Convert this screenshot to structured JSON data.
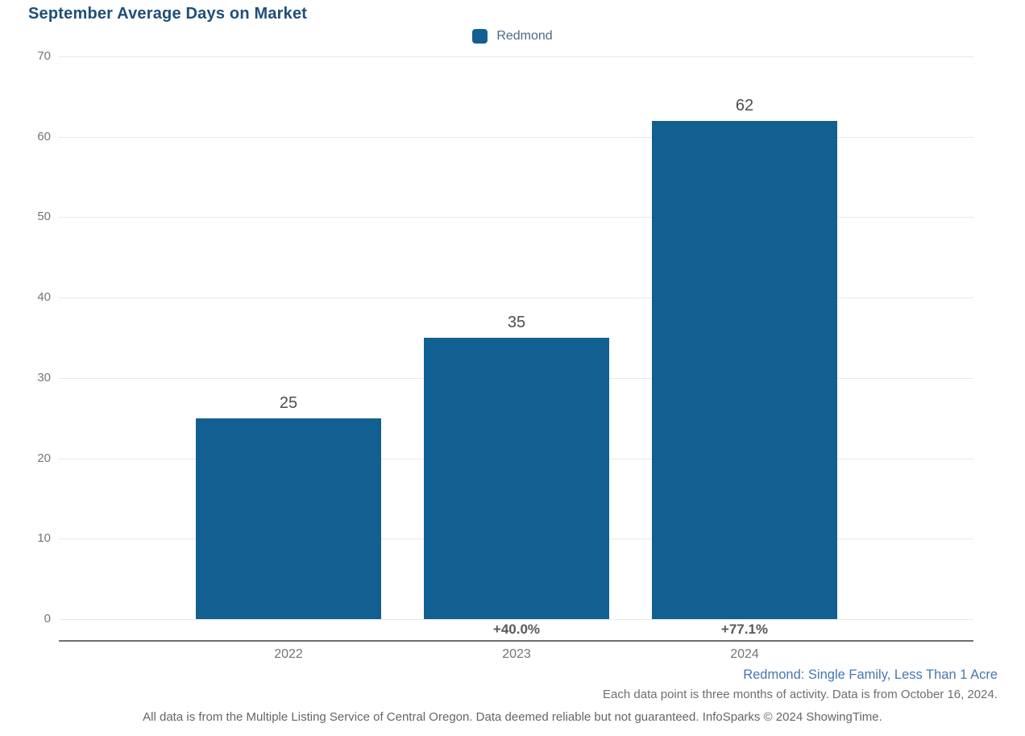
{
  "chart_data": {
    "type": "bar",
    "title": "September Average Days on Market",
    "legend": [
      {
        "name": "Redmond",
        "color": "#126092"
      }
    ],
    "legend_position": "top-center",
    "categories": [
      "2022",
      "2023",
      "2024"
    ],
    "values": [
      25,
      35,
      62
    ],
    "pct_change": [
      "",
      "+40.0%",
      "+77.1%"
    ],
    "xlabel": "",
    "ylabel": "",
    "ylim": [
      0,
      70
    ],
    "yticks": [
      0,
      10,
      20,
      30,
      40,
      50,
      60,
      70
    ],
    "grid": true
  },
  "footnotes": {
    "series_description": "Redmond: Single Family, Less Than 1 Acre",
    "data_note": "Each data point is three months of activity. Data is from October 16, 2024.",
    "disclaimer": "All data is from the Multiple Listing Service of Central Oregon. Data deemed reliable but not guaranteed. InfoSparks © 2024 ShowingTime."
  },
  "colors": {
    "bar": "#126092",
    "title": "#1F4E79",
    "legend_text": "#4C6A87",
    "series_footnote": "#4678AE",
    "axis_text": "#757575",
    "value_label": "#4D4D4D",
    "pct_label": "#595959",
    "gridline": "#E9E9E9",
    "axis_line": "#6F6F6F"
  }
}
